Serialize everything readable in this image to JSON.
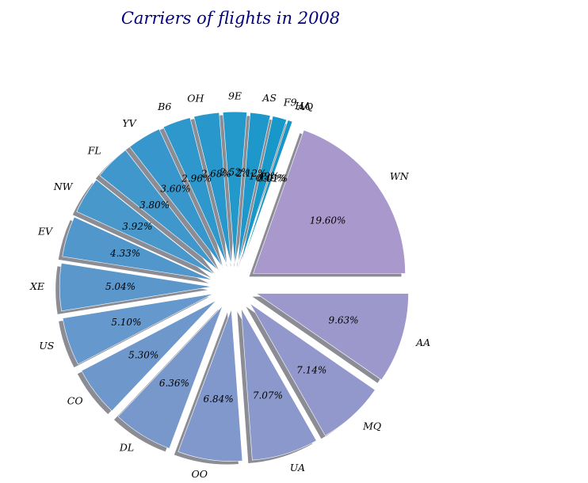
{
  "chart_data": {
    "type": "pie",
    "title": "Carriers of flights in 2008",
    "start_angle_deg": 0,
    "direction": "counterclockwise",
    "exploded": true,
    "shadow": true,
    "slices": [
      {
        "label": "WN",
        "value": 19.6,
        "pct_label": "19.60%",
        "color": "#a898cc"
      },
      {
        "label": "AQ",
        "value": 0.01,
        "pct_label": "0.01%",
        "color": "#1497c8"
      },
      {
        "label": "HA",
        "value": 0.49,
        "pct_label": "0.49%",
        "color": "#1697c8"
      },
      {
        "label": "F9",
        "value": 1.49,
        "pct_label": "1.49%",
        "color": "#1898c8"
      },
      {
        "label": "AS",
        "value": 2.12,
        "pct_label": "2.12%",
        "color": "#1e98ca"
      },
      {
        "label": "9E",
        "value": 2.52,
        "pct_label": "2.52%",
        "color": "#2398ca"
      },
      {
        "label": "OH",
        "value": 2.68,
        "pct_label": "2.68%",
        "color": "#2897cb"
      },
      {
        "label": "B6",
        "value": 2.96,
        "pct_label": "2.96%",
        "color": "#2e98cc"
      },
      {
        "label": "YV",
        "value": 3.6,
        "pct_label": "3.60%",
        "color": "#3797cc"
      },
      {
        "label": "FL",
        "value": 3.8,
        "pct_label": "3.80%",
        "color": "#4097cc"
      },
      {
        "label": "NW",
        "value": 3.92,
        "pct_label": "3.92%",
        "color": "#4998cc"
      },
      {
        "label": "EV",
        "value": 4.33,
        "pct_label": "4.33%",
        "color": "#5297cc"
      },
      {
        "label": "XE",
        "value": 5.04,
        "pct_label": "5.04%",
        "color": "#5c97cc"
      },
      {
        "label": "US",
        "value": 5.1,
        "pct_label": "5.10%",
        "color": "#6598cc"
      },
      {
        "label": "CO",
        "value": 5.3,
        "pct_label": "5.30%",
        "color": "#6e98cc"
      },
      {
        "label": "DL",
        "value": 6.36,
        "pct_label": "6.36%",
        "color": "#7898cc"
      },
      {
        "label": "OO",
        "value": 6.84,
        "pct_label": "6.84%",
        "color": "#8198cc"
      },
      {
        "label": "UA",
        "value": 7.07,
        "pct_label": "7.07%",
        "color": "#8a98cc"
      },
      {
        "label": "MQ",
        "value": 7.14,
        "pct_label": "7.14%",
        "color": "#9398cc"
      },
      {
        "label": "AA",
        "value": 9.63,
        "pct_label": "9.63%",
        "color": "#9d98cc"
      }
    ]
  }
}
